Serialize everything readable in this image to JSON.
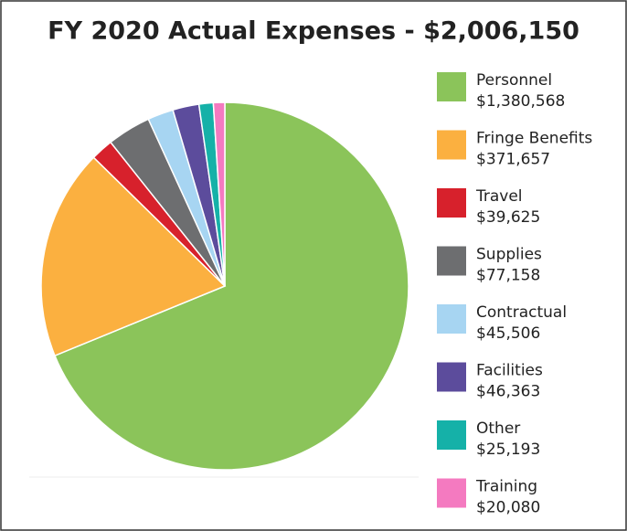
{
  "chart_data": {
    "type": "pie",
    "title": "FY 2020 Actual Expenses - $2,006,150",
    "categories": [
      "Personnel",
      "Fringe Benefits",
      "Travel",
      "Supplies",
      "Contractual",
      "Facilities",
      "Other",
      "Training"
    ],
    "values": [
      1380568,
      371657,
      39625,
      77158,
      45506,
      46363,
      25193,
      20080
    ],
    "value_labels": [
      "$1,380,568",
      "$371,657",
      "$39,625",
      "$77,158",
      "$45,506",
      "$46,363",
      "$25,193",
      "$20,080"
    ],
    "colors": [
      "#8bc45a",
      "#fbb040",
      "#d7212c",
      "#6d6e70",
      "#a7d5f2",
      "#5c4c9c",
      "#15b1a8",
      "#f47ac0"
    ],
    "legend": "right"
  }
}
